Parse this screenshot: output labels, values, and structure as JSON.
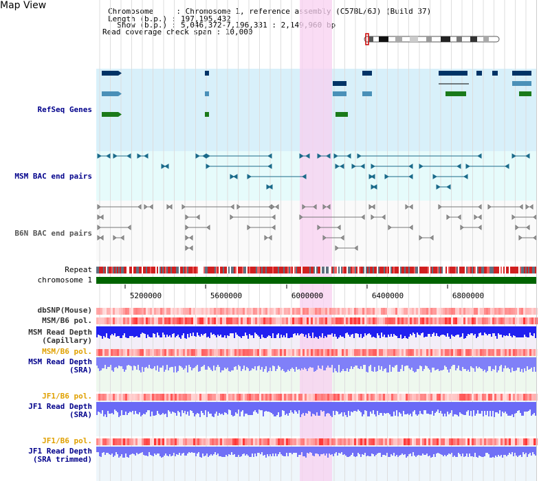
{
  "title": "Map View",
  "info": {
    "chromosome": "Chromosome     : Chromosome 1, reference assembly (C57BL/6J) (Build 37)",
    "length": "Length (b.p.) : 197,195,432",
    "show": "  Show (b.p.) : 5,046,372-7,196,331 : 2,149,960 bp",
    "span": "Read coverage check span : 10,000"
  },
  "tracks": {
    "refseq": "RefSeq Genes",
    "msm_bac": "MSM BAC end pairs",
    "b6n_bac": "B6N BAC end pairs",
    "repeat": "Repeat",
    "chromosome": "chromosome 1",
    "dbsnp": "dbSNP(Mouse)",
    "msm_b6_pol_1": "MSM/B6 pol.",
    "msm_read_depth_cap": "MSM Read Depth\n(Capillary)",
    "msm_b6_pol_2": "MSM/B6 pol.",
    "msm_read_depth_sra": "MSM Read Depth\n(SRA)",
    "jf1_b6_pol_1": "JF1/B6 pol.",
    "jf1_read_depth_sra": "JF1 Read Depth\n(SRA)",
    "jf1_b6_pol_2": "JF1/B6 pol.",
    "jf1_read_depth_trim": "JF1 Read Depth\n(SRA trimmed)"
  },
  "axis": {
    "ticks": [
      "5200000",
      "5600000",
      "6000000",
      "6400000",
      "6800000"
    ]
  },
  "colors": {
    "highlight": "#f8d0f0",
    "refseq_bg": "#d8f0fa",
    "msm_bac_bg": "#e6fbfb",
    "chromosome_bar": "#006400",
    "gene_dark": "#003366",
    "gene_mid": "#4a90b8",
    "gene_green": "#1a7a1a",
    "depth_blue": "#2020f0",
    "depth_light": "#8080f8"
  }
}
